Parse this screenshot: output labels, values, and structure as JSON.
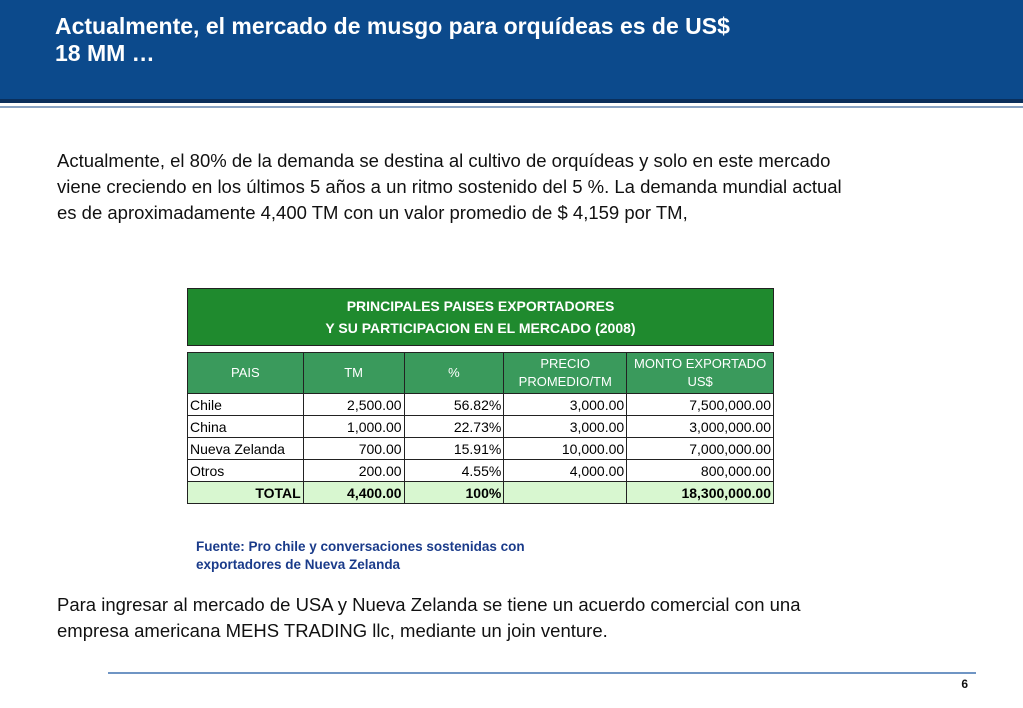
{
  "slide": {
    "title_line1": "Actualmente, el mercado de musgo para orquídeas es de US$",
    "title_line2": "18 MM …",
    "para1_line1": "Actualmente, el 80% de la demanda se destina al cultivo de orquídeas y solo en este mercado",
    "para1_line2": "viene creciendo en los últimos 5 años a un ritmo sostenido del  5 %. La demanda mundial actual",
    "para1_line3": "es de aproximadamente 4,400 TM con un valor promedio de  $ 4,159 por TM,",
    "table_title_line1": "PRINCIPALES PAISES EXPORTADORES",
    "table_title_line2": "Y SU PARTICIPACION EN EL MERCADO (2008)",
    "headers": {
      "pais": "PAIS",
      "tm": "TM",
      "pct": "%",
      "precio_line1": "PRECIO",
      "precio_line2": "PROMEDIO/TM",
      "monto_line1": "MONTO EXPORTADO",
      "monto_line2": "US$"
    },
    "rows": [
      {
        "pais": "Chile",
        "tm": "2,500.00",
        "pct": "56.82%",
        "precio": "3,000.00",
        "monto": "7,500,000.00"
      },
      {
        "pais": "China",
        "tm": "1,000.00",
        "pct": "22.73%",
        "precio": "3,000.00",
        "monto": "3,000,000.00"
      },
      {
        "pais": "Nueva Zelanda",
        "tm": "700.00",
        "pct": "15.91%",
        "precio": "10,000.00",
        "monto": "7,000,000.00"
      },
      {
        "pais": "Otros",
        "tm": "200.00",
        "pct": "4.55%",
        "precio": "4,000.00",
        "monto": "800,000.00"
      }
    ],
    "total": {
      "label": "TOTAL",
      "tm": "4,400.00",
      "pct": "100%",
      "precio": "",
      "monto": "18,300,000.00"
    },
    "source_line1": "Fuente: Pro chile y conversaciones sostenidas con",
    "source_line2": "exportadores de Nueva Zelanda",
    "para2_line1": "Para ingresar al mercado de USA y Nueva Zelanda se tiene un acuerdo comercial con una",
    "para2_line2": "empresa americana MEHS TRADING llc, mediante un join venture.",
    "page_number": "6"
  },
  "colors": {
    "header_bg": "#0c4a8c",
    "table_title_bg": "#1f8a2e",
    "table_header_bg": "#3a9a5c",
    "total_row_bg": "#d8f7d0",
    "source_text": "#1a3b8a"
  }
}
